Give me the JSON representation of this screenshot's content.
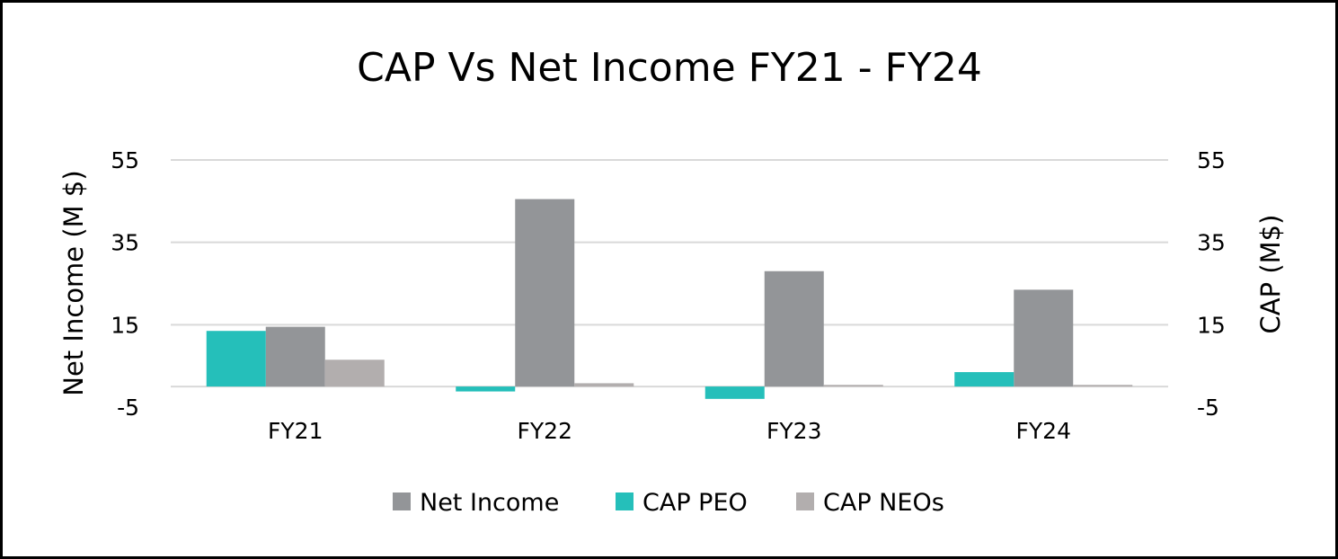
{
  "chart_data": {
    "type": "bar",
    "title": "CAP Vs Net Income FY21 - FY24",
    "categories": [
      "FY21",
      "FY22",
      "FY23",
      "FY24"
    ],
    "ylabel": "Net Income (M $)",
    "y2label": "CAP (M$)",
    "ylim": [
      -5,
      55
    ],
    "y2lim": [
      -5,
      55
    ],
    "yticks": [
      -5,
      15,
      35,
      55
    ],
    "y2ticks": [
      -5,
      15,
      35,
      55
    ],
    "grid": true,
    "legend_position": "bottom",
    "series": [
      {
        "name": "Net Income",
        "axis": "left",
        "color": "#939598",
        "values": [
          14.5,
          45.5,
          28,
          23.5
        ]
      },
      {
        "name": "CAP PEO",
        "axis": "right",
        "color": "#25bfba",
        "values": [
          13.5,
          -1.2,
          -3,
          3.5
        ]
      },
      {
        "name": "CAP NEOs",
        "axis": "right",
        "color": "#b2aeae",
        "values": [
          6.5,
          0.8,
          0.4,
          0.4
        ]
      }
    ]
  }
}
